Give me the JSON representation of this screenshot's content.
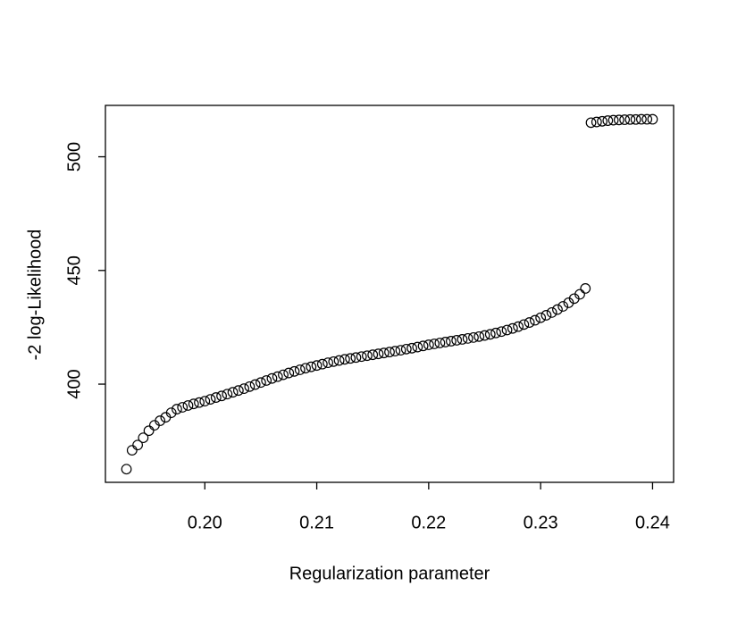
{
  "chart_data": {
    "type": "scatter",
    "xlabel": "Regularization parameter",
    "ylabel": "-2 log-Likelihood",
    "xlim": [
      0.19112,
      0.24188
    ],
    "ylim": [
      356.8,
      522.6
    ],
    "xticks": [
      {
        "value": 0.2,
        "label": "0.20"
      },
      0.21,
      0.22,
      0.23,
      0.24
    ],
    "yticks": [
      400,
      450,
      500
    ],
    "color": "#000000",
    "x": [
      0.193,
      0.1935,
      0.194,
      0.1945,
      0.195,
      0.1955,
      0.196,
      0.1965,
      0.197,
      0.1975,
      0.198,
      0.1985,
      0.199,
      0.1995,
      0.2,
      0.2005,
      0.201,
      0.2015,
      0.202,
      0.2025,
      0.203,
      0.2035,
      0.204,
      0.2045,
      0.205,
      0.2055,
      0.206,
      0.2065,
      0.207,
      0.2075,
      0.208,
      0.2085,
      0.209,
      0.2095,
      0.21,
      0.2105,
      0.211,
      0.2115,
      0.212,
      0.2125,
      0.213,
      0.2135,
      0.214,
      0.2145,
      0.215,
      0.2155,
      0.216,
      0.2165,
      0.217,
      0.2175,
      0.218,
      0.2185,
      0.219,
      0.2195,
      0.22,
      0.2205,
      0.221,
      0.2215,
      0.222,
      0.2225,
      0.223,
      0.2235,
      0.224,
      0.2245,
      0.225,
      0.2255,
      0.226,
      0.2265,
      0.227,
      0.2275,
      0.228,
      0.2285,
      0.229,
      0.2295,
      0.23,
      0.2305,
      0.231,
      0.2315,
      0.232,
      0.2325,
      0.233,
      0.2335,
      0.234,
      0.2345,
      0.235,
      0.2355,
      0.236,
      0.2365,
      0.237,
      0.2375,
      0.238,
      0.2385,
      0.239,
      0.2395,
      0.24
    ],
    "values": [
      362.6,
      370.9,
      373.2,
      376.4,
      379.5,
      381.9,
      383.9,
      385.4,
      387.4,
      389.0,
      389.8,
      390.6,
      391.3,
      391.9,
      392.5,
      393.3,
      394.1,
      394.8,
      395.6,
      396.4,
      397.2,
      398.0,
      398.9,
      399.8,
      400.7,
      401.6,
      402.5,
      403.3,
      404.1,
      404.9,
      405.6,
      406.3,
      407.0,
      407.6,
      408.2,
      408.8,
      409.4,
      409.9,
      410.4,
      410.9,
      411.3,
      411.7,
      412.1,
      412.5,
      412.9,
      413.3,
      413.7,
      414.1,
      414.5,
      414.9,
      415.4,
      415.8,
      416.3,
      416.8,
      417.3,
      417.7,
      418.1,
      418.5,
      418.9,
      419.3,
      419.7,
      420.1,
      420.5,
      420.9,
      421.4,
      421.9,
      422.5,
      423.1,
      423.8,
      424.5,
      425.3,
      426.2,
      427.1,
      428.1,
      429.2,
      430.3,
      431.5,
      432.8,
      434.2,
      435.8,
      437.6,
      439.5,
      442.1,
      515.0,
      515.3,
      515.6,
      515.9,
      516.1,
      516.2,
      516.3,
      516.4,
      516.4,
      516.5,
      516.5,
      516.5
    ]
  }
}
